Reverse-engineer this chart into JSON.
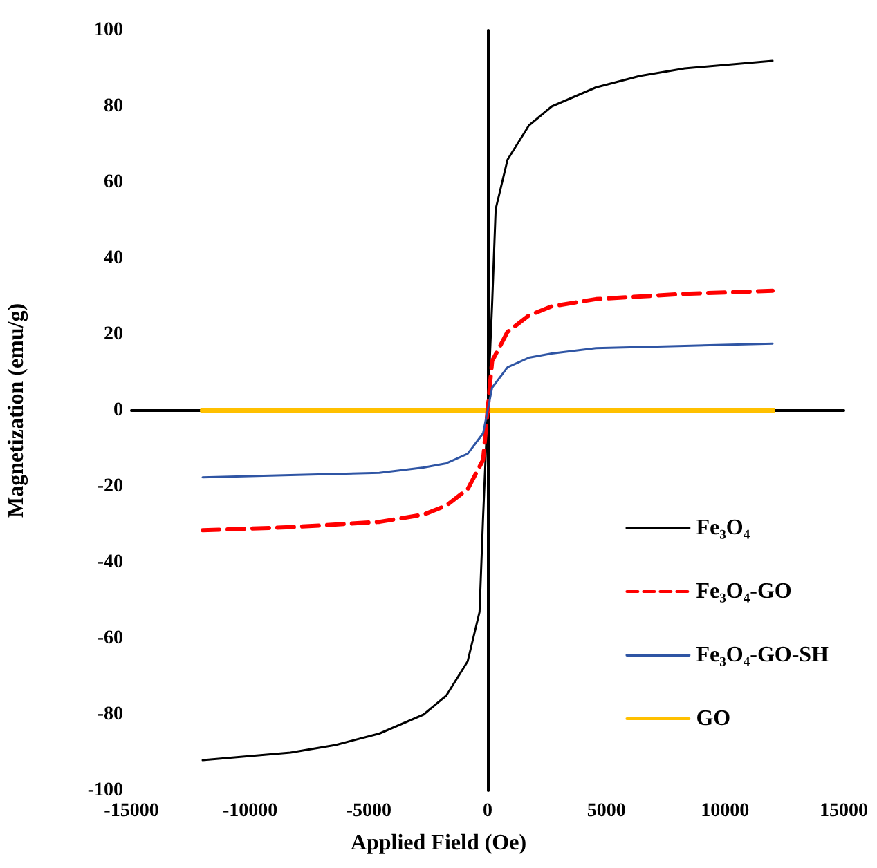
{
  "chart_data": {
    "type": "line",
    "xlabel": "Applied Field (Oe)",
    "ylabel": "Magnetization (emu/g)",
    "xlim": [
      -15000,
      15000
    ],
    "xticks": [
      -15000,
      -10000,
      -5000,
      0,
      5000,
      10000,
      15000
    ],
    "ylim": [
      -100,
      100
    ],
    "yticks": [
      -100,
      -80,
      -60,
      -40,
      -20,
      0,
      20,
      40,
      60,
      80,
      100
    ],
    "grid": false,
    "legend": "bottom right",
    "marker": "none",
    "series": [
      {
        "name": "Fe₃O₄",
        "color": "#000000",
        "line_style": "solid",
        "x": [
          -12000,
          -8300,
          -6400,
          -4560,
          -2700,
          -1740,
          -840,
          -340,
          -190,
          0,
          190,
          340,
          840,
          1740,
          2700,
          4560,
          6400,
          8300,
          12000
        ],
        "values": [
          -92,
          -90,
          -88,
          -85,
          -80,
          -75,
          -66,
          -53,
          -28,
          0,
          28,
          53,
          66,
          75,
          80,
          85,
          88,
          90,
          92
        ]
      },
      {
        "name": "Fe₃O₄-GO",
        "color": "#ff0000",
        "line_style": "dashed",
        "x": [
          -12000,
          -8300,
          -4560,
          -2700,
          -1740,
          -840,
          -190,
          0,
          190,
          840,
          1740,
          2700,
          4560,
          8300,
          12000
        ],
        "values": [
          -31.5,
          -30.7,
          -29.3,
          -27.4,
          -25,
          -20.7,
          -13,
          0,
          13,
          20.7,
          25,
          27.4,
          29.3,
          30.7,
          31.5
        ]
      },
      {
        "name": "Fe₃O₄-GO-SH",
        "color": "#2f55a4",
        "line_style": "solid",
        "x": [
          -12000,
          -8300,
          -4560,
          -2700,
          -1740,
          -840,
          -190,
          0,
          190,
          840,
          1740,
          2700,
          4560,
          8300,
          12000
        ],
        "values": [
          -17.6,
          -17,
          -16.4,
          -15,
          -13.9,
          -11.4,
          -6,
          0,
          6,
          11.4,
          13.9,
          15,
          16.4,
          17,
          17.6
        ]
      },
      {
        "name": "GO",
        "color": "#ffc000",
        "line_style": "solid",
        "x": [
          -12000,
          12000
        ],
        "values": [
          0,
          0
        ]
      }
    ]
  }
}
